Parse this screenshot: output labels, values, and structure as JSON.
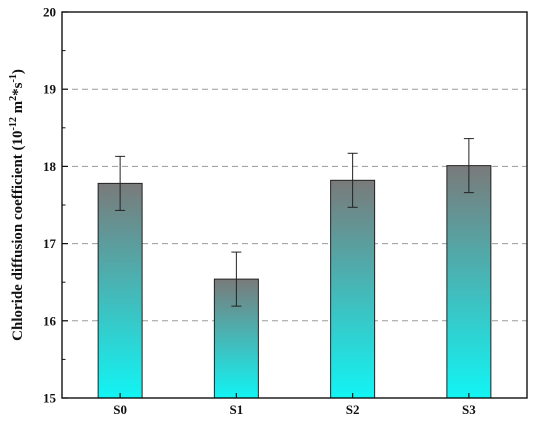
{
  "chart_data": {
    "type": "bar",
    "categories": [
      "S0",
      "S1",
      "S2",
      "S3"
    ],
    "values": [
      17.78,
      16.54,
      17.82,
      18.01
    ],
    "errors": [
      0.35,
      0.35,
      0.35,
      0.35
    ],
    "xlabel": "",
    "ylabel_base": "Chloride diffusion coefficient (10",
    "ylabel_exp1": "-12",
    "ylabel_mid": " m",
    "ylabel_exp2": "2",
    "ylabel_mid2": "*s",
    "ylabel_exp3": "-1",
    "ylabel_end": ")",
    "ylim": [
      15,
      20
    ],
    "yticks": [
      15,
      16,
      17,
      18,
      19,
      20
    ],
    "grid": true,
    "bar_gradient": {
      "top": "#7a7a7a",
      "bottom": "#12f4f4"
    },
    "gridline_color": "#9a9a9a"
  }
}
